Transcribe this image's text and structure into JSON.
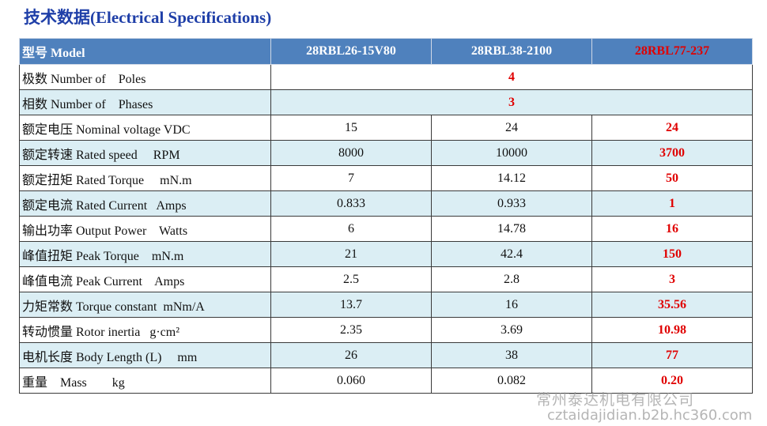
{
  "title": "技术数据(Electrical Specifications)",
  "table": {
    "header": [
      "型号 Model",
      "28RBL26-15V80",
      "28RBL38-2100",
      "28RBL77-237"
    ],
    "rows": [
      [
        "极数 Number of    Poles",
        "4"
      ],
      [
        "相数 Number of    Phases",
        "3"
      ],
      [
        "额定电压 Nominal voltage VDC",
        "15",
        "24",
        "24"
      ],
      [
        "额定转速 Rated speed     RPM",
        "8000",
        "10000",
        "3700"
      ],
      [
        "额定扭矩 Rated Torque     mN.m",
        "7",
        "14.12",
        "50"
      ],
      [
        "额定电流 Rated Current   Amps",
        "0.833",
        "0.933",
        "1"
      ],
      [
        "输出功率 Output Power    Watts",
        "6",
        "14.78",
        "16"
      ],
      [
        "峰值扭矩 Peak Torque    mN.m",
        "21",
        "42.4",
        "150"
      ],
      [
        "峰值电流 Peak Current    Amps",
        "2.5",
        "2.8",
        "3"
      ],
      [
        "力矩常数 Torque constant  mNm/A",
        "13.7",
        "16",
        "35.56"
      ],
      [
        "转动惯量 Rotor inertia   g·cm²",
        "2.35",
        "3.69",
        "10.98"
      ],
      [
        "电机长度 Body Length (L)     mm",
        "26",
        "38",
        "77"
      ],
      [
        "重量    Mass        kg",
        "0.060",
        "0.082",
        "0.20"
      ]
    ]
  },
  "watermark": [
    "常州泰达机电有限公司",
    "cztaidajidian.b2b.hc360.com"
  ]
}
